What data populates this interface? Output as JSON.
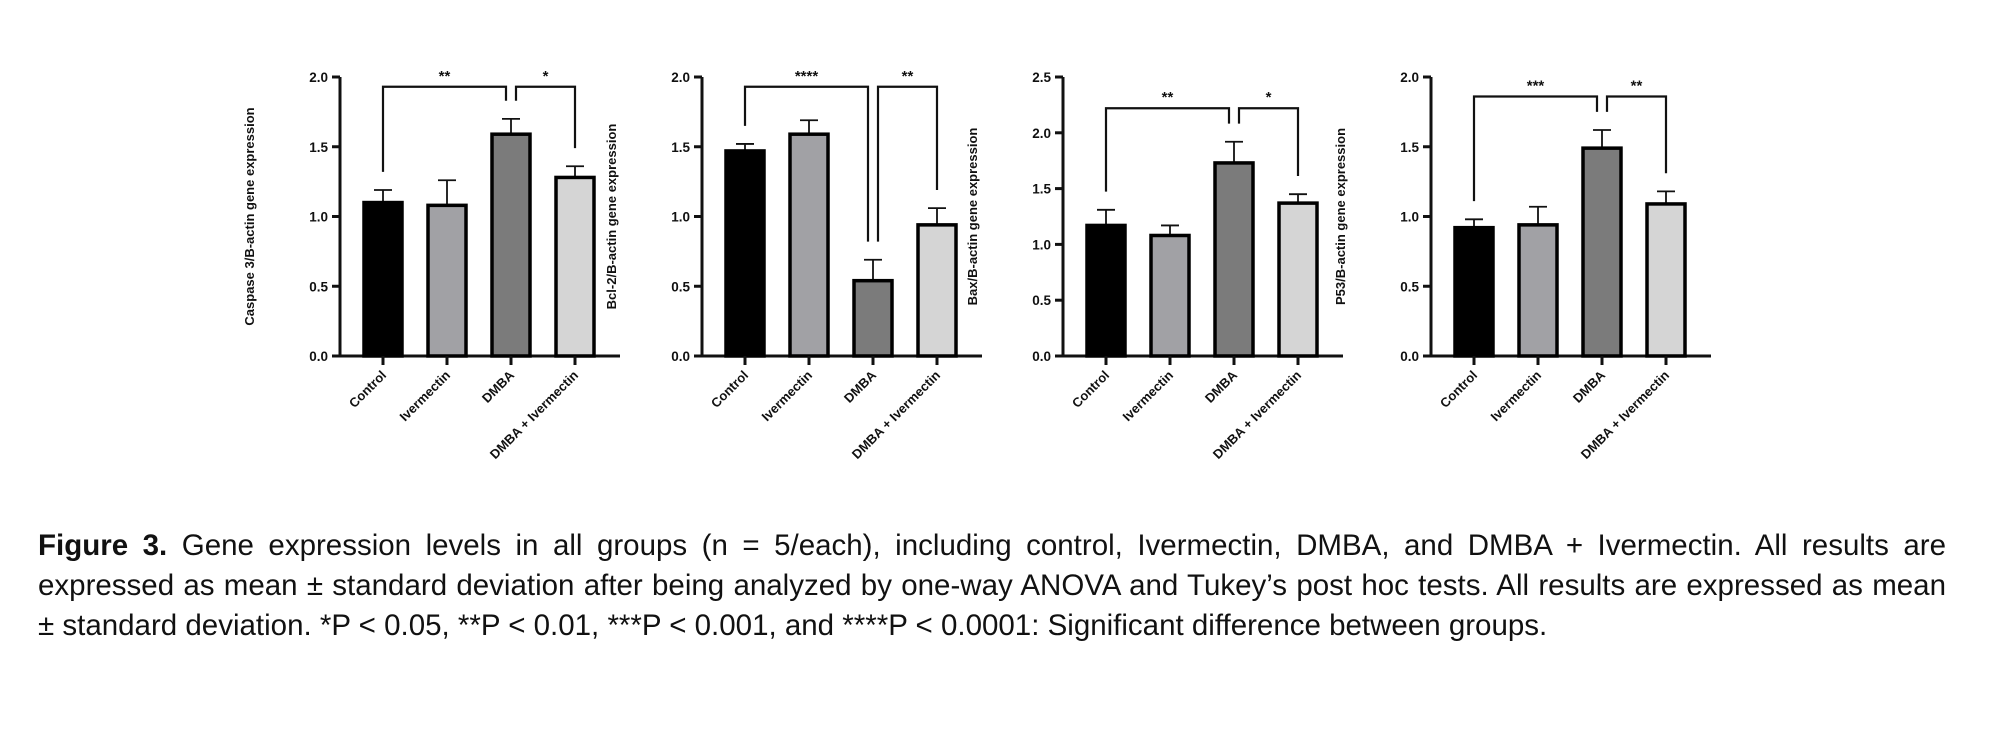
{
  "chart_data": [
    {
      "type": "bar",
      "ylabel": "Caspase 3/B-actin gene expression",
      "categories": [
        "Control",
        "Ivermectin",
        "DMBA",
        "DMBA + Ivermectin"
      ],
      "values": [
        1.1,
        1.08,
        1.59,
        1.28
      ],
      "errors": [
        0.09,
        0.18,
        0.11,
        0.08
      ],
      "ylim": [
        0,
        2.0
      ],
      "yticks": [
        "0.0",
        "0.5",
        "1.0",
        "1.5",
        "2.0"
      ],
      "significance": [
        {
          "from": 0,
          "to": 2,
          "label": "**",
          "y": 1.93
        },
        {
          "from": 2,
          "to": 3,
          "label": "*",
          "y": 1.93
        }
      ]
    },
    {
      "type": "bar",
      "ylabel": "Bcl-2/B-actin gene expression",
      "categories": [
        "Control",
        "Ivermectin",
        "DMBA",
        "DMBA + Ivermectin"
      ],
      "values": [
        1.47,
        1.59,
        0.54,
        0.94
      ],
      "errors": [
        0.05,
        0.1,
        0.15,
        0.12
      ],
      "ylim": [
        0,
        2.0
      ],
      "yticks": [
        "0.0",
        "0.5",
        "1.0",
        "1.5",
        "2.0"
      ],
      "significance": [
        {
          "from": 0,
          "to": 2,
          "label": "****",
          "y": 1.93
        },
        {
          "from": 2,
          "to": 3,
          "label": "**",
          "y": 1.93
        }
      ]
    },
    {
      "type": "bar",
      "ylabel": "Bax/B-actin gene expression",
      "categories": [
        "Control",
        "Ivermectin",
        "DMBA",
        "DMBA + Ivermectin"
      ],
      "values": [
        1.17,
        1.08,
        1.73,
        1.37
      ],
      "errors": [
        0.14,
        0.09,
        0.19,
        0.08
      ],
      "ylim": [
        0,
        2.5
      ],
      "yticks": [
        "0.0",
        "0.5",
        "1.0",
        "1.5",
        "2.0",
        "2.5"
      ],
      "significance": [
        {
          "from": 0,
          "to": 2,
          "label": "**",
          "y": 2.22
        },
        {
          "from": 2,
          "to": 3,
          "label": "*",
          "y": 2.22
        }
      ]
    },
    {
      "type": "bar",
      "ylabel": "P53/B-actin gene expression",
      "categories": [
        "Control",
        "Ivermectin",
        "DMBA",
        "DMBA + Ivermectin"
      ],
      "values": [
        0.92,
        0.94,
        1.49,
        1.09
      ],
      "errors": [
        0.06,
        0.13,
        0.13,
        0.09
      ],
      "ylim": [
        0,
        2.0
      ],
      "yticks": [
        "0.0",
        "0.5",
        "1.0",
        "1.5",
        "2.0"
      ],
      "significance": [
        {
          "from": 0,
          "to": 2,
          "label": "***",
          "y": 1.86
        },
        {
          "from": 2,
          "to": 3,
          "label": "**",
          "y": 1.86
        }
      ]
    }
  ],
  "bar_colors": [
    "#000000",
    "#a1a1a5",
    "#7b7b7b",
    "#d5d5d5"
  ],
  "caption": {
    "label": "Figure 3.",
    "text": "Gene expression levels in all groups (n = 5/each), including control, Ivermectin, DMBA, and DMBA + Ivermectin. All results are expressed as mean ± standard deviation after being analyzed by one-way ANOVA and Tukey’s post hoc tests. All results are expressed as mean ± standard deviation. *P < 0.05, **P < 0.01, ***P < 0.001, and ****P < 0.0001: Significant difference between groups."
  }
}
